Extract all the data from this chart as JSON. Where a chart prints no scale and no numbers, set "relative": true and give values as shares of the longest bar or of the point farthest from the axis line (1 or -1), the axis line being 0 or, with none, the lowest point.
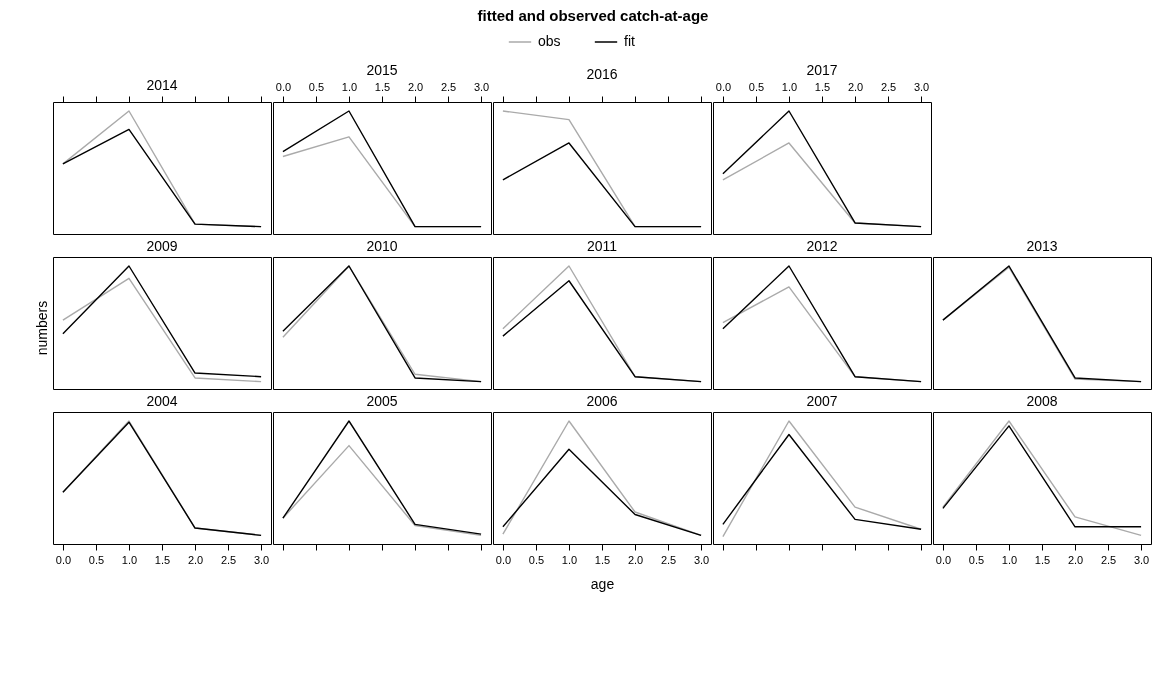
{
  "chart_data": [
    {
      "type": "line",
      "title": "2014",
      "annotations": [
        "fitted and observed catch-at-age"
      ],
      "relative": true,
      "tick_labels": false,
      "x": [
        0,
        1,
        2,
        3
      ],
      "xlim": [
        -0.15,
        3.15
      ],
      "xticks": [
        {
          "value": 0,
          "label": null
        },
        {
          "value": 0.5,
          "label": null
        },
        {
          "value": 1,
          "label": null
        },
        {
          "value": 1.5,
          "label": null
        },
        {
          "value": 2,
          "label": null
        },
        {
          "value": 2.5,
          "label": null
        },
        {
          "value": 3,
          "label": null
        }
      ],
      "series": [
        {
          "color": "#aaaaaa",
          "values": [
            0.57,
            1,
            0.08,
            0.06
          ]
        },
        {
          "color": "#000000",
          "values": [
            0.57,
            0.85,
            0.08,
            0.06
          ]
        }
      ]
    },
    {
      "type": "line",
      "title": "2015",
      "relative": true,
      "x": [
        0,
        1,
        2,
        3
      ],
      "xlim": [
        -0.15,
        3.15
      ],
      "xticks": [
        {
          "value": 0,
          "label": "0.0"
        },
        {
          "value": 0.5,
          "label": "0.5"
        },
        {
          "value": 1,
          "label": "1.0"
        },
        {
          "value": 1.5,
          "label": "1.5"
        },
        {
          "value": 2,
          "label": "2.0"
        },
        {
          "value": 2.5,
          "label": "2.5"
        },
        {
          "value": 3,
          "label": "3.0"
        }
      ],
      "series": [
        {
          "color": "#aaaaaa",
          "values": [
            0.63,
            0.79,
            0.06,
            0.06
          ]
        },
        {
          "color": "#000000",
          "values": [
            0.67,
            1,
            0.06,
            0.06
          ]
        }
      ]
    },
    {
      "type": "line",
      "title": "2016",
      "legend": "top",
      "relative": true,
      "tick_labels": false,
      "x": [
        0,
        1,
        2,
        3
      ],
      "xlim": [
        -0.15,
        3.15
      ],
      "xticks": [
        {
          "value": 0,
          "label": null
        },
        {
          "value": 0.5,
          "label": null
        },
        {
          "value": 1,
          "label": null
        },
        {
          "value": 1.5,
          "label": null
        },
        {
          "value": 2,
          "label": null
        },
        {
          "value": 2.5,
          "label": null
        },
        {
          "value": 3,
          "label": null
        }
      ],
      "series": [
        {
          "name": "obs",
          "color": "#aaaaaa",
          "values": [
            1,
            0.93,
            0.06,
            0.06
          ]
        },
        {
          "name": "fit",
          "color": "#000000",
          "values": [
            0.44,
            0.74,
            0.06,
            0.06
          ]
        }
      ]
    },
    {
      "type": "line",
      "title": "2017",
      "relative": true,
      "x": [
        0,
        1,
        2,
        3
      ],
      "xlim": [
        -0.15,
        3.15
      ],
      "xticks": [
        {
          "value": 0,
          "label": "0.0"
        },
        {
          "value": 0.5,
          "label": "0.5"
        },
        {
          "value": 1,
          "label": "1.0"
        },
        {
          "value": 1.5,
          "label": "1.5"
        },
        {
          "value": 2,
          "label": "2.0"
        },
        {
          "value": 2.5,
          "label": "2.5"
        },
        {
          "value": 3,
          "label": "3.0"
        }
      ],
      "series": [
        {
          "color": "#aaaaaa",
          "values": [
            0.44,
            0.74,
            0.09,
            0.06
          ]
        },
        {
          "color": "#000000",
          "values": [
            0.49,
            1,
            0.09,
            0.06
          ]
        }
      ]
    },
    {
      "type": "line",
      "title": "2009",
      "ylabel": "numbers",
      "relative": true,
      "tick_labels": false,
      "x": [
        0,
        1,
        2,
        3
      ],
      "xlim": [
        -0.15,
        3.15
      ],
      "series": [
        {
          "color": "#aaaaaa",
          "values": [
            0.56,
            0.9,
            0.09,
            0.06
          ]
        },
        {
          "color": "#000000",
          "values": [
            0.45,
            1,
            0.13,
            0.1
          ]
        }
      ]
    },
    {
      "type": "line",
      "title": "2010",
      "relative": true,
      "tick_labels": false,
      "x": [
        0,
        1,
        2,
        3
      ],
      "xlim": [
        -0.15,
        3.15
      ],
      "series": [
        {
          "color": "#aaaaaa",
          "values": [
            0.42,
            1,
            0.12,
            0.06
          ]
        },
        {
          "color": "#000000",
          "values": [
            0.47,
            1,
            0.09,
            0.06
          ]
        }
      ]
    },
    {
      "type": "line",
      "title": "2011",
      "relative": true,
      "tick_labels": false,
      "x": [
        0,
        1,
        2,
        3
      ],
      "xlim": [
        -0.15,
        3.15
      ],
      "series": [
        {
          "color": "#aaaaaa",
          "values": [
            0.49,
            1,
            0.1,
            0.06
          ]
        },
        {
          "color": "#000000",
          "values": [
            0.43,
            0.88,
            0.1,
            0.06
          ]
        }
      ]
    },
    {
      "type": "line",
      "title": "2012",
      "relative": true,
      "tick_labels": false,
      "x": [
        0,
        1,
        2,
        3
      ],
      "xlim": [
        -0.15,
        3.15
      ],
      "series": [
        {
          "color": "#aaaaaa",
          "values": [
            0.54,
            0.83,
            0.1,
            0.06
          ]
        },
        {
          "color": "#000000",
          "values": [
            0.49,
            1,
            0.1,
            0.06
          ]
        }
      ]
    },
    {
      "type": "line",
      "title": "2013",
      "relative": true,
      "tick_labels": false,
      "x": [
        0,
        1,
        2,
        3
      ],
      "xlim": [
        -0.15,
        3.15
      ],
      "series": [
        {
          "color": "#aaaaaa",
          "values": [
            0.56,
            0.99,
            0.08,
            0.06
          ]
        },
        {
          "color": "#000000",
          "values": [
            0.56,
            1,
            0.09,
            0.06
          ]
        }
      ]
    },
    {
      "type": "line",
      "title": "2004",
      "relative": true,
      "x": [
        0,
        1,
        2,
        3
      ],
      "xlim": [
        -0.15,
        3.15
      ],
      "xticks": [
        {
          "value": 0,
          "label": "0.0"
        },
        {
          "value": 0.5,
          "label": "0.5"
        },
        {
          "value": 1,
          "label": "1.0"
        },
        {
          "value": 1.5,
          "label": "1.5"
        },
        {
          "value": 2,
          "label": "2.0"
        },
        {
          "value": 2.5,
          "label": "2.5"
        },
        {
          "value": 3,
          "label": "3.0"
        }
      ],
      "series": [
        {
          "color": "#aaaaaa",
          "values": [
            0.42,
            1,
            0.13,
            0.07
          ]
        },
        {
          "color": "#000000",
          "values": [
            0.42,
            0.99,
            0.13,
            0.07
          ]
        }
      ]
    },
    {
      "type": "line",
      "title": "2005",
      "relative": true,
      "tick_labels": false,
      "x": [
        0,
        1,
        2,
        3
      ],
      "xlim": [
        -0.15,
        3.15
      ],
      "xticks": [
        {
          "value": 0,
          "label": null
        },
        {
          "value": 0.5,
          "label": null
        },
        {
          "value": 1,
          "label": null
        },
        {
          "value": 1.5,
          "label": null
        },
        {
          "value": 2,
          "label": null
        },
        {
          "value": 2.5,
          "label": null
        },
        {
          "value": 3,
          "label": null
        }
      ],
      "series": [
        {
          "color": "#aaaaaa",
          "values": [
            0.21,
            0.8,
            0.15,
            0.07
          ]
        },
        {
          "color": "#000000",
          "values": [
            0.21,
            1,
            0.16,
            0.08
          ]
        }
      ]
    },
    {
      "type": "line",
      "title": "2006",
      "xlabel": "age",
      "relative": true,
      "x": [
        0,
        1,
        2,
        3
      ],
      "xlim": [
        -0.15,
        3.15
      ],
      "xticks": [
        {
          "value": 0,
          "label": "0.0"
        },
        {
          "value": 0.5,
          "label": "0.5"
        },
        {
          "value": 1,
          "label": "1.0"
        },
        {
          "value": 1.5,
          "label": "1.5"
        },
        {
          "value": 2,
          "label": "2.0"
        },
        {
          "value": 2.5,
          "label": "2.5"
        },
        {
          "value": 3,
          "label": "3.0"
        }
      ],
      "series": [
        {
          "color": "#aaaaaa",
          "values": [
            0.08,
            1,
            0.26,
            0.07
          ]
        },
        {
          "color": "#000000",
          "values": [
            0.14,
            0.77,
            0.24,
            0.07
          ]
        }
      ]
    },
    {
      "type": "line",
      "title": "2007",
      "relative": true,
      "tick_labels": false,
      "x": [
        0,
        1,
        2,
        3
      ],
      "xlim": [
        -0.15,
        3.15
      ],
      "xticks": [
        {
          "value": 0,
          "label": null
        },
        {
          "value": 0.5,
          "label": null
        },
        {
          "value": 1,
          "label": null
        },
        {
          "value": 1.5,
          "label": null
        },
        {
          "value": 2,
          "label": null
        },
        {
          "value": 2.5,
          "label": null
        },
        {
          "value": 3,
          "label": null
        }
      ],
      "series": [
        {
          "color": "#aaaaaa",
          "values": [
            0.06,
            1,
            0.3,
            0.12
          ]
        },
        {
          "color": "#000000",
          "values": [
            0.16,
            0.89,
            0.2,
            0.12
          ]
        }
      ]
    },
    {
      "type": "line",
      "title": "2008",
      "relative": true,
      "x": [
        0,
        1,
        2,
        3
      ],
      "xlim": [
        -0.15,
        3.15
      ],
      "xticks": [
        {
          "value": 0,
          "label": "0.0"
        },
        {
          "value": 0.5,
          "label": "0.5"
        },
        {
          "value": 1,
          "label": "1.0"
        },
        {
          "value": 1.5,
          "label": "1.5"
        },
        {
          "value": 2,
          "label": "2.0"
        },
        {
          "value": 2.5,
          "label": "2.5"
        },
        {
          "value": 3,
          "label": "3.0"
        }
      ],
      "series": [
        {
          "color": "#aaaaaa",
          "values": [
            0.3,
            1,
            0.22,
            0.07
          ]
        },
        {
          "color": "#000000",
          "values": [
            0.29,
            0.96,
            0.14,
            0.14
          ]
        }
      ]
    }
  ]
}
